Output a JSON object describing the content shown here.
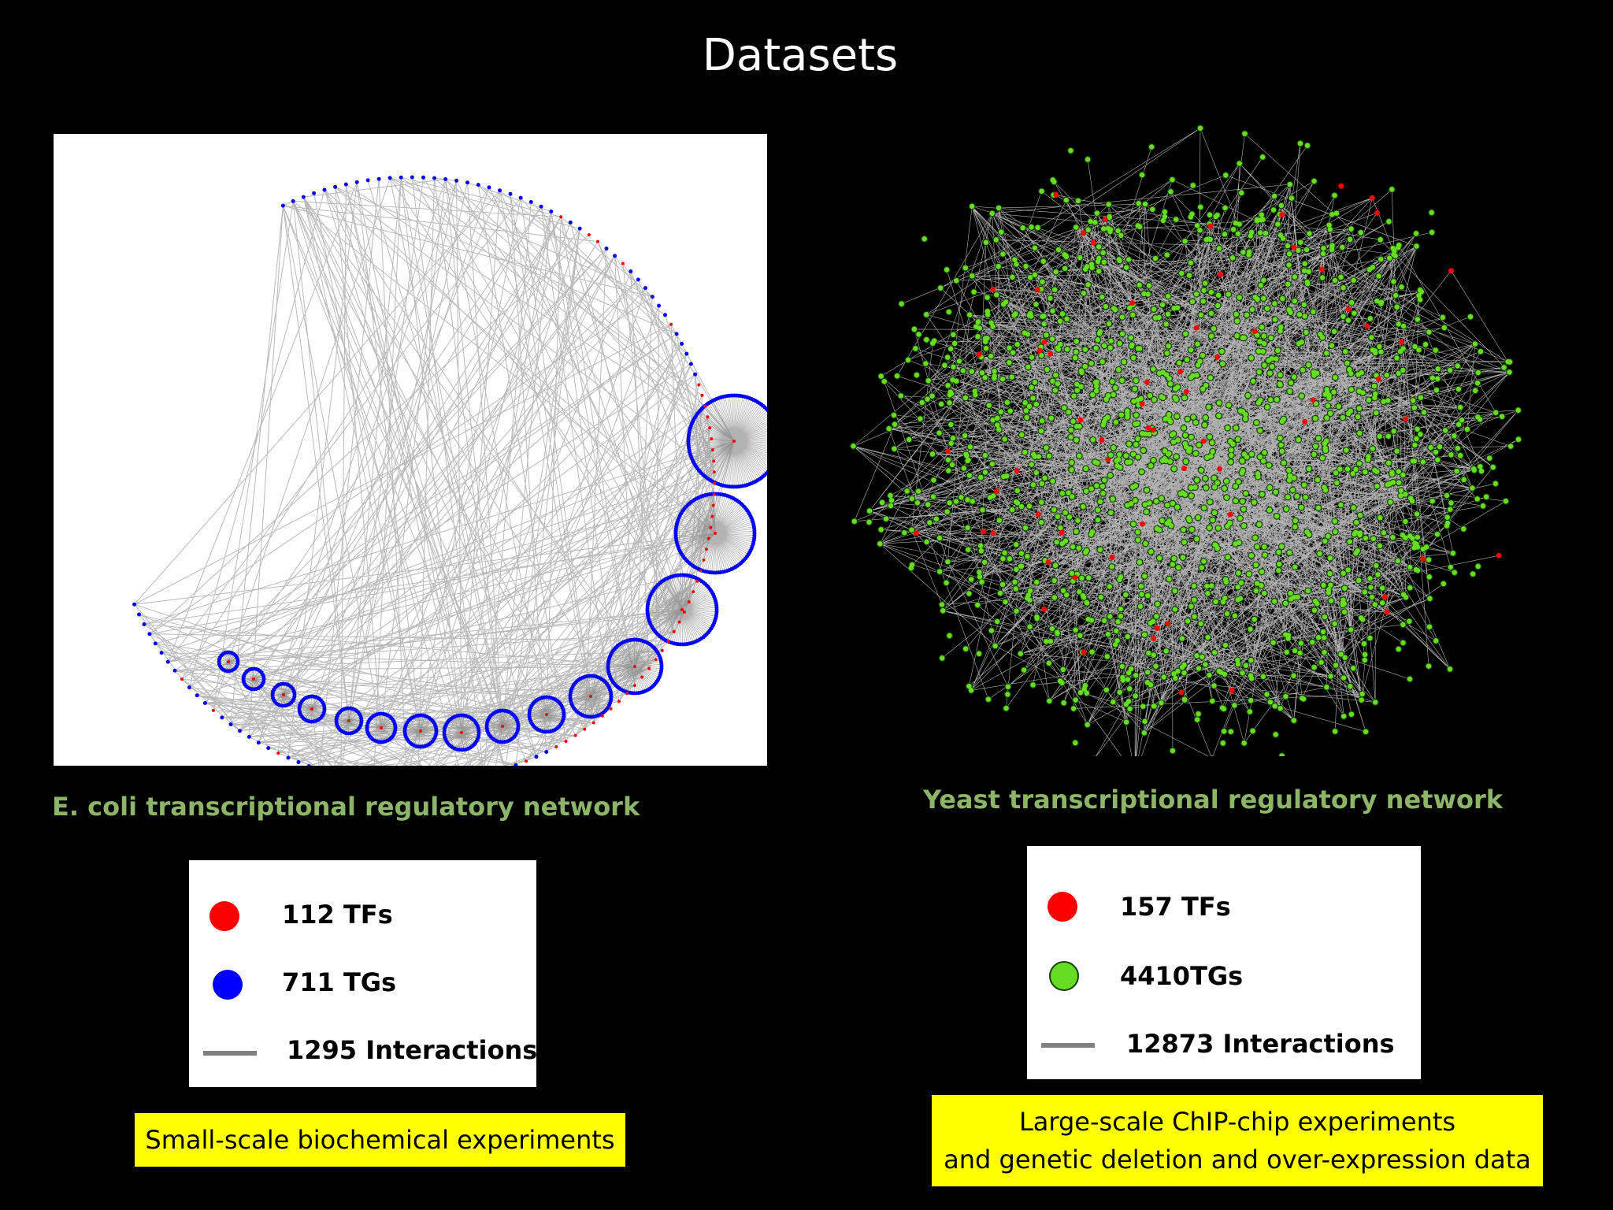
{
  "slide": {
    "title": "Datasets"
  },
  "ecoli": {
    "caption": "E. coli transcriptional regulatory network",
    "legend": {
      "tf_label": "112 TFs",
      "tg_label": "711 TGs",
      "interaction_label": "1295 Interactions"
    },
    "note": "Small-scale biochemical experiments"
  },
  "yeast": {
    "caption": "Yeast transcriptional regulatory network",
    "legend": {
      "tf_label": "157 TFs",
      "tg_label": "4410TGs",
      "interaction_label": "12873 Interactions"
    },
    "note_line1": "Large-scale ChIP-chip experiments",
    "note_line2": "and genetic deletion and over-expression data"
  },
  "colors": {
    "background": "#000000",
    "tf_node": "#ff0000",
    "ecoli_tg_node": "#0000ff",
    "yeast_tg_node": "#66dd22",
    "edge": "#808080",
    "caption_text": "#8db567",
    "note_background": "#ffff00"
  }
}
